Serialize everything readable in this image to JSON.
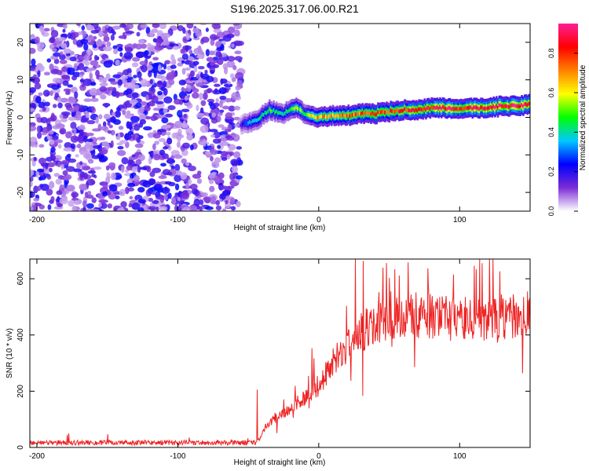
{
  "title": "S196.2025.317.06.00.R21",
  "chart_data": [
    {
      "type": "heatmap",
      "xlabel": "Height of straight line (km)",
      "ylabel": "Frequency (Hz)",
      "xlim": [
        -205,
        150
      ],
      "ylim": [
        -25,
        25
      ],
      "xticks": [
        -200,
        -100,
        0,
        100
      ],
      "yticks": [
        -20,
        -10,
        0,
        10,
        20
      ],
      "noise_region": {
        "x_range": [
          -205,
          -55
        ],
        "y_range": [
          -25,
          25
        ],
        "amplitude_range": [
          0.05,
          0.25
        ]
      },
      "signal_ridge": {
        "x": [
          -55,
          -50,
          -45,
          -40,
          -35,
          -30,
          -25,
          -20,
          -15,
          -10,
          -5,
          0,
          10,
          20,
          30,
          40,
          50,
          60,
          70,
          80,
          90,
          100,
          110,
          120,
          130,
          140,
          150
        ],
        "freq": [
          -2,
          -1.5,
          -1,
          0.5,
          2,
          1.5,
          1,
          2,
          2.5,
          1,
          0.5,
          0,
          0.5,
          0.5,
          1,
          1,
          1.5,
          2,
          2,
          2.5,
          2.5,
          2,
          2.5,
          2.5,
          3,
          3,
          3.5
        ],
        "peak_amplitude": [
          0.2,
          0.35,
          0.4,
          0.45,
          0.5,
          0.45,
          0.4,
          0.5,
          0.55,
          0.5,
          0.6,
          0.7,
          0.7,
          0.75,
          0.75,
          0.8,
          0.8,
          0.85,
          0.85,
          0.9,
          0.9,
          0.85,
          0.9,
          0.9,
          0.9,
          0.9,
          0.95
        ]
      },
      "colorbar": {
        "label": "Normalized spectral amplitude",
        "range": [
          0,
          0.95
        ],
        "ticks": [
          0.0,
          0.2,
          0.4,
          0.6,
          0.8
        ],
        "tick_labels": [
          "0.0",
          "0.2",
          "0.4",
          "0.6",
          "0.8"
        ],
        "stops": [
          "#ffffff",
          "#7b2cd6",
          "#0000ff",
          "#00c8ff",
          "#00ff00",
          "#ffff00",
          "#ff8000",
          "#ff0000",
          "#ff1e96"
        ]
      }
    },
    {
      "type": "line",
      "xlabel": "Height of straight line (km)",
      "ylabel": "SNR (10 * v/v)",
      "xlim": [
        -205,
        150
      ],
      "ylim": [
        0,
        670
      ],
      "xticks": [
        -200,
        -100,
        0,
        100
      ],
      "yticks": [
        0,
        200,
        400,
        600
      ],
      "series": [
        {
          "name": "SNR",
          "color": "#ee2222",
          "envelope": {
            "x": [
              -205,
              -150,
              -100,
              -60,
              -45,
              -42,
              -38,
              -30,
              -20,
              -10,
              0,
              10,
              20,
              30,
              40,
              50,
              60,
              70,
              80,
              90,
              100,
              110,
              120,
              130,
              140,
              150
            ],
            "y": [
              18,
              18,
              18,
              18,
              18,
              30,
              70,
              110,
              140,
              180,
              220,
              300,
              360,
              410,
              440,
              460,
              470,
              470,
              465,
              460,
              455,
              460,
              460,
              465,
              460,
              460
            ]
          }
        }
      ]
    }
  ]
}
